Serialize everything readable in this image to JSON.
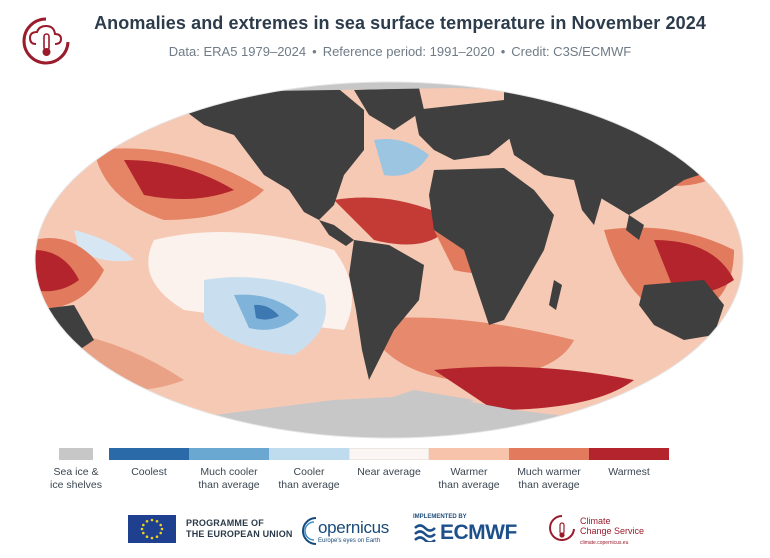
{
  "header": {
    "title": "Anomalies and extremes in sea surface temperature in November 2024",
    "subtitle_data": "Data: ERA5 1979–2024",
    "subtitle_reference": "Reference period: 1991–2020",
    "subtitle_credit": "Credit: C3S/ECMWF",
    "separator": "•"
  },
  "colors": {
    "land": "#3f3f3f",
    "sea_ice": "#c7c7c7",
    "coolest": "#2b6aa8",
    "much_cooler": "#6aa8d2",
    "cooler": "#bfdbee",
    "near_average": "#fbf6f3",
    "warmer": "#f7c3ab",
    "much_warmer": "#e27a5d",
    "warmest": "#b3242c",
    "brand_red": "#9a1b2b",
    "title_color": "#2c3c4c"
  },
  "legend": {
    "items": [
      {
        "label_1": "Sea ice &",
        "label_2": "ice shelves",
        "color": "#c7c7c7"
      },
      {
        "label_1": "Coolest",
        "label_2": "",
        "color": "#2b6aa8"
      },
      {
        "label_1": "Much cooler",
        "label_2": "than average",
        "color": "#6aa8d2"
      },
      {
        "label_1": "Cooler",
        "label_2": "than average",
        "color": "#bfdbee"
      },
      {
        "label_1": "Near average",
        "label_2": "",
        "color": "#fbf6f3"
      },
      {
        "label_1": "Warmer",
        "label_2": "than average",
        "color": "#f7c3ab"
      },
      {
        "label_1": "Much warmer",
        "label_2": "than average",
        "color": "#e27a5d"
      },
      {
        "label_1": "Warmest",
        "label_2": "",
        "color": "#b3242c"
      }
    ]
  },
  "footer": {
    "eu_line1": "PROGRAMME OF",
    "eu_line2": "THE EUROPEAN UNION",
    "copernicus": "opernicus",
    "copernicus_tag": "Europe's eyes on Earth",
    "ecmwf_implemented": "IMPLEMENTED BY",
    "ecmwf": "ECMWF",
    "ccs_line1": "Climate",
    "ccs_line2": "Change Service",
    "ccs_tag": "climate.copernicus.eu"
  },
  "icons": {
    "c3s": "cloud-thermometer-icon",
    "eu": "eu-flag-icon",
    "copernicus": "copernicus-swirl-icon",
    "ecmwf": "ecmwf-wave-icon",
    "ccs": "climate-change-service-icon"
  }
}
